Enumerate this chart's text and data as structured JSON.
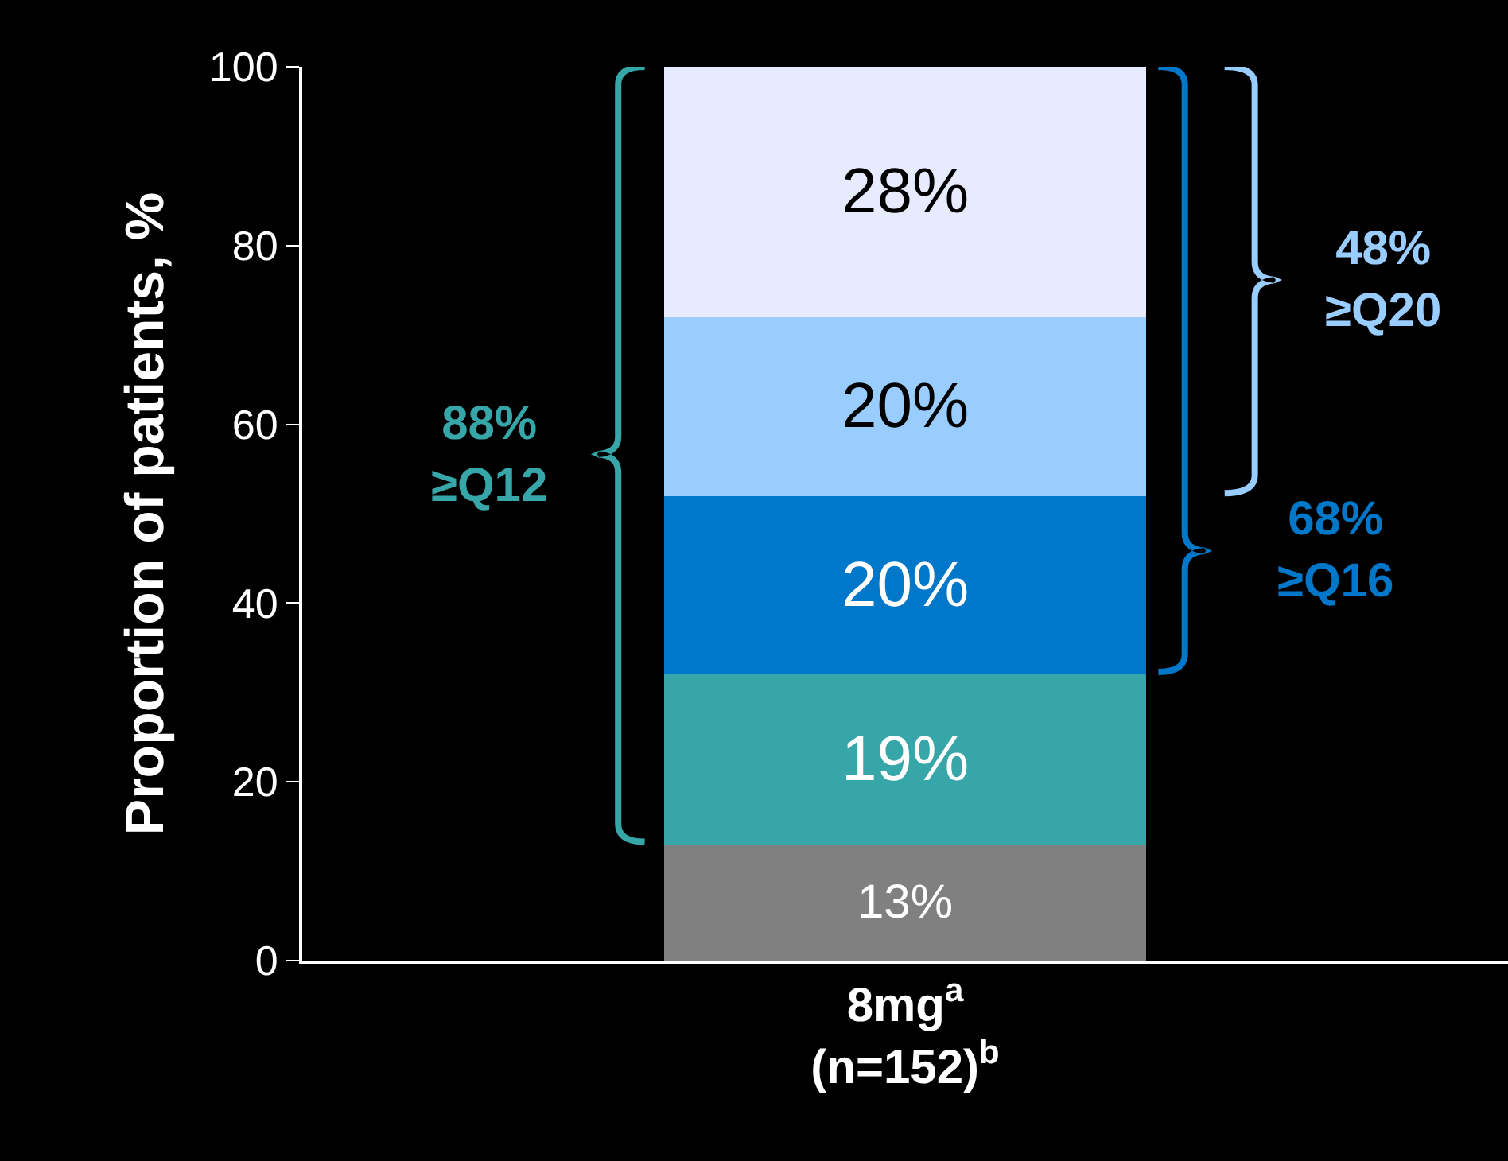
{
  "chart_data": {
    "type": "bar",
    "stacked": true,
    "categories": [
      "8mg$^{a}$\n(n=152)$^{b}$"
    ],
    "ylabel": "Proportion of patients, %",
    "ylim": [
      0,
      100
    ],
    "yticks": [
      0,
      20,
      40,
      60,
      80,
      100
    ],
    "grid": false,
    "legend": false,
    "series": [
      {
        "color": "#808080",
        "values": [
          13
        ],
        "value_labels": [
          "13%"
        ]
      },
      {
        "color": "#36a6a8",
        "values": [
          19
        ],
        "value_labels": [
          "19%"
        ]
      },
      {
        "color": "#0077c8",
        "values": [
          20
        ],
        "value_labels": [
          "20%"
        ]
      },
      {
        "color": "#99ccff",
        "values": [
          20
        ],
        "value_labels": [
          "20%"
        ]
      },
      {
        "color": "#e6ebff",
        "values": [
          28
        ],
        "value_labels": [
          "28%"
        ]
      }
    ],
    "annotations": [
      "88%\n≥Q12",
      "68%\n≥Q16",
      "48%\n≥Q20"
    ]
  }
}
